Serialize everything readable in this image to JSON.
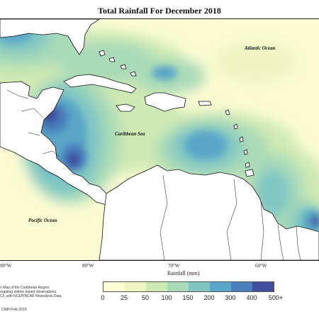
{
  "title": "Total Rainfall For December 2018",
  "ocean_labels": {
    "atlantic": "Atlantic Ocean",
    "caribbean": "Caribbean Sea",
    "pacific": "Pacific Ocean"
  },
  "longitude_ticks": [
    "90°W",
    "80°W",
    "70°W",
    "60°W"
  ],
  "legend": {
    "title": "Rainfall (mm)",
    "breaks": [
      "0",
      "25",
      "50",
      "100",
      "150",
      "200",
      "300",
      "400",
      "500+"
    ],
    "colors": [
      "#fffdd6",
      "#eef5c2",
      "#cfe9b4",
      "#a9dab8",
      "#7fc6c2",
      "#5aa6c8",
      "#4a7fbd",
      "#3f4f9e",
      "#1c2a6b"
    ]
  },
  "caption_lines": [
    "n Map of the Caribbean Region",
    "regating station based observations,",
    "CF, with NCEP/NCAR Reanalysis Data."
  ],
  "credit": "CIMH Feb-2019"
}
